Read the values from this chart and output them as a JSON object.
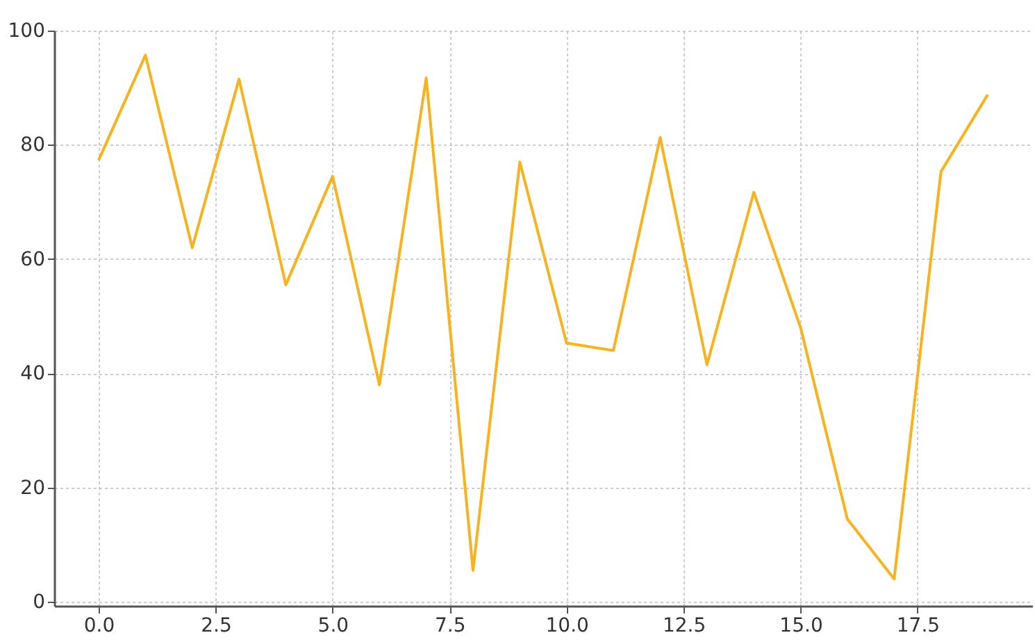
{
  "chart_data": {
    "type": "line",
    "x": [
      0,
      1,
      2,
      3,
      4,
      5,
      6,
      7,
      8,
      9,
      10,
      11,
      12,
      13,
      14,
      15,
      16,
      17,
      18,
      19
    ],
    "series": [
      {
        "color": "#f7b21e",
        "values": [
          77.3,
          95.7,
          62,
          91.5,
          55.5,
          74.5,
          38,
          91.7,
          5.5,
          77,
          45.3,
          44,
          81.3,
          41.5,
          71.7,
          48,
          14.5,
          4,
          75.3,
          88.8
        ]
      }
    ],
    "xlim": [
      -0.95,
      19.95
    ],
    "xticks": [
      {
        "value": 0,
        "label": "0.0"
      },
      {
        "value": 2.5,
        "label": "2.5"
      },
      {
        "value": 5,
        "label": "5.0"
      },
      {
        "value": 7.5,
        "label": "7.5"
      },
      {
        "value": 10,
        "label": "10.0"
      },
      {
        "value": 12.5,
        "label": "12.5"
      },
      {
        "value": 15,
        "label": "15.0"
      },
      {
        "value": 17.5,
        "label": "17.5"
      }
    ],
    "ylim": [
      -0.7,
      100
    ],
    "yticks": [
      0,
      20,
      40,
      60,
      80,
      100
    ],
    "grid": true,
    "line_style": "solid",
    "marker": "none"
  }
}
